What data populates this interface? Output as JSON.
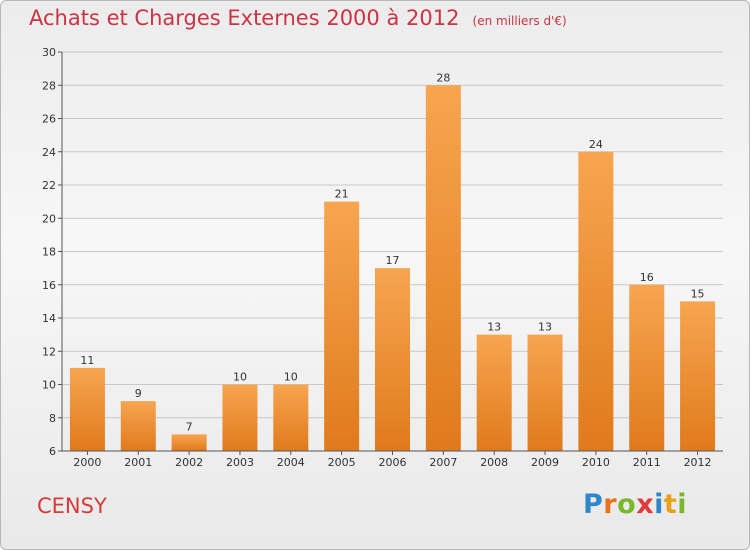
{
  "title": "Achats et Charges Externes 2000 à 2012",
  "unit_note": "(en milliers d'€)",
  "place": "CENSY",
  "logo": {
    "text": "Proxiti",
    "letters": [
      {
        "ch": "P",
        "color": "#2f86c8"
      },
      {
        "ch": "r",
        "color": "#e8731a"
      },
      {
        "ch": "o",
        "color": "#7bb62f"
      },
      {
        "ch": "x",
        "color": "#e23a3a"
      },
      {
        "ch": "i",
        "color": "#2f86c8"
      },
      {
        "ch": "t",
        "color": "#e8a21a"
      },
      {
        "ch": "i",
        "color": "#7bb62f"
      }
    ]
  },
  "colors": {
    "bar_light": "#f7a550",
    "bar_dark": "#e07a1c",
    "axis": "#555555",
    "grid": "#c8c8c8"
  },
  "chart_data": {
    "type": "bar",
    "title": "Achats et Charges Externes 2000 à 2012",
    "subtitle": "(en milliers d'€)",
    "categories": [
      "2000",
      "2001",
      "2002",
      "2003",
      "2004",
      "2005",
      "2006",
      "2007",
      "2008",
      "2009",
      "2010",
      "2011",
      "2012"
    ],
    "values": [
      11,
      9,
      7,
      10,
      10,
      21,
      17,
      28,
      13,
      13,
      24,
      16,
      15
    ],
    "ylim": [
      6,
      30
    ],
    "yticks": [
      6,
      8,
      10,
      12,
      14,
      16,
      18,
      20,
      22,
      24,
      26,
      28,
      30
    ],
    "grid": true,
    "data_labels": true
  }
}
